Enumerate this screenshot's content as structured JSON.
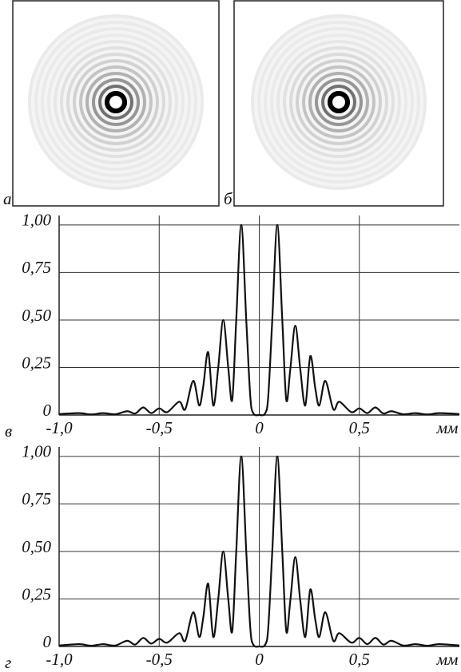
{
  "images": [
    {
      "label": "а"
    },
    {
      "label": "б"
    }
  ],
  "chart_data": [
    {
      "type": "line",
      "label": "в",
      "xlabel": "мм",
      "x": [
        -1.0,
        -0.9,
        -0.84,
        -0.78,
        -0.72,
        -0.66,
        -0.62,
        -0.58,
        -0.54,
        -0.5,
        -0.46,
        -0.4,
        -0.37,
        -0.33,
        -0.3,
        -0.28,
        -0.255,
        -0.23,
        -0.205,
        -0.18,
        -0.155,
        -0.135,
        -0.115,
        -0.09,
        -0.065,
        -0.045,
        -0.03,
        0,
        0.03,
        0.045,
        0.065,
        0.09,
        0.115,
        0.135,
        0.155,
        0.18,
        0.205,
        0.23,
        0.255,
        0.28,
        0.3,
        0.33,
        0.37,
        0.4,
        0.46,
        0.5,
        0.54,
        0.58,
        0.62,
        0.66,
        0.72,
        0.78,
        0.84,
        0.9,
        1.0
      ],
      "series": [
        {
          "name": null,
          "color": "#111111",
          "values": [
            0.005,
            0.01,
            0.003,
            0.01,
            0.004,
            0.02,
            0.008,
            0.04,
            0.01,
            0.035,
            0.015,
            0.07,
            0.03,
            0.18,
            0.05,
            0.15,
            0.33,
            0.05,
            0.25,
            0.5,
            0.25,
            0.08,
            0.5,
            1.0,
            0.5,
            0.1,
            0.01,
            0,
            0.01,
            0.1,
            0.5,
            1.0,
            0.5,
            0.08,
            0.24,
            0.47,
            0.24,
            0.05,
            0.31,
            0.14,
            0.05,
            0.18,
            0.03,
            0.07,
            0.015,
            0.035,
            0.01,
            0.04,
            0.008,
            0.02,
            0.004,
            0.01,
            0.003,
            0.01,
            0.005
          ]
        }
      ],
      "xlim": [
        -1.0,
        1.0
      ],
      "ylim": [
        0,
        1.05
      ],
      "xticks": [
        {
          "value": -1.0,
          "label": "-1,0"
        },
        {
          "value": -0.5,
          "label": "-0,5"
        },
        0,
        {
          "value": 0.5,
          "label": "0,5"
        }
      ],
      "yticks": [
        0,
        {
          "value": 0.25,
          "label": "0,25"
        },
        {
          "value": 0.5,
          "label": "0,50"
        },
        {
          "value": 0.75,
          "label": "0,75"
        },
        {
          "value": 1.0,
          "label": "1,00"
        }
      ],
      "grid": true
    },
    {
      "type": "line",
      "label": "г",
      "xlabel": "мм",
      "x": [
        -1.0,
        -0.9,
        -0.84,
        -0.78,
        -0.72,
        -0.66,
        -0.62,
        -0.58,
        -0.54,
        -0.5,
        -0.46,
        -0.4,
        -0.37,
        -0.33,
        -0.3,
        -0.28,
        -0.255,
        -0.23,
        -0.205,
        -0.18,
        -0.155,
        -0.135,
        -0.115,
        -0.09,
        -0.065,
        -0.045,
        -0.03,
        0,
        0.03,
        0.045,
        0.065,
        0.09,
        0.115,
        0.135,
        0.155,
        0.18,
        0.205,
        0.23,
        0.255,
        0.28,
        0.3,
        0.33,
        0.37,
        0.4,
        0.46,
        0.5,
        0.54,
        0.58,
        0.62,
        0.66,
        0.72,
        0.78,
        0.84,
        0.9,
        1.0
      ],
      "series": [
        {
          "name": null,
          "color": "#111111",
          "values": [
            0.005,
            0.012,
            0.004,
            0.012,
            0.005,
            0.03,
            0.01,
            0.045,
            0.015,
            0.04,
            0.02,
            0.07,
            0.03,
            0.18,
            0.05,
            0.15,
            0.33,
            0.05,
            0.25,
            0.5,
            0.25,
            0.08,
            0.5,
            1.0,
            0.5,
            0.1,
            0.01,
            0,
            0.01,
            0.1,
            0.5,
            1.0,
            0.5,
            0.08,
            0.24,
            0.47,
            0.24,
            0.05,
            0.3,
            0.14,
            0.05,
            0.18,
            0.03,
            0.07,
            0.02,
            0.045,
            0.012,
            0.045,
            0.01,
            0.03,
            0.005,
            0.012,
            0.004,
            0.012,
            0.005
          ]
        }
      ],
      "xlim": [
        -1.0,
        1.0
      ],
      "ylim": [
        0,
        1.05
      ],
      "xticks": [
        {
          "value": -1.0,
          "label": "-1,0"
        },
        {
          "value": -0.5,
          "label": "-0,5"
        },
        0,
        {
          "value": 0.5,
          "label": "0,5"
        }
      ],
      "yticks": [
        0,
        {
          "value": 0.25,
          "label": "0,25"
        },
        {
          "value": 0.5,
          "label": "0,50"
        },
        {
          "value": 0.75,
          "label": "0,75"
        },
        {
          "value": 1.0,
          "label": "1,00"
        }
      ],
      "grid": true
    }
  ]
}
